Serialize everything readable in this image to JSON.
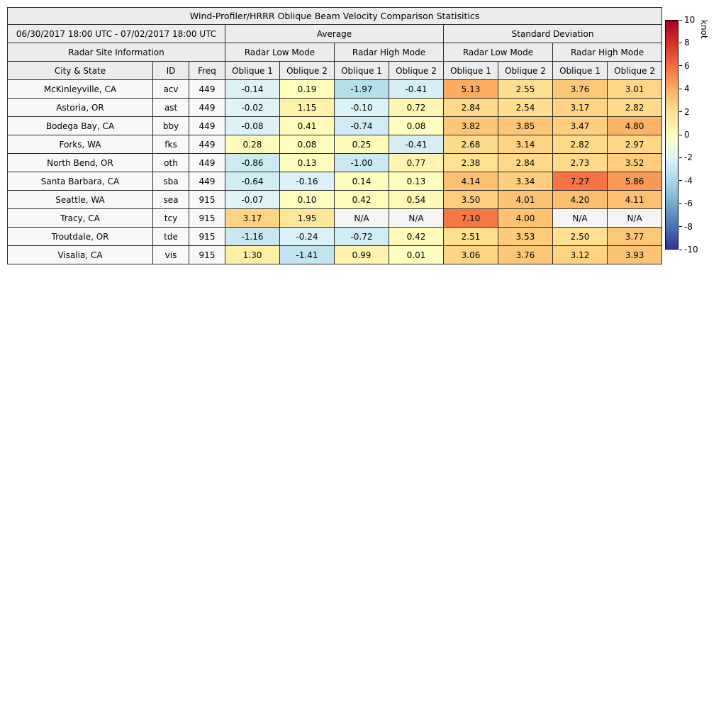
{
  "title": "Wind-Profiler/HRRR Oblique Beam Velocity Comparison Statisitics",
  "header": {
    "date_range": "06/30/2017 18:00 UTC - 07/02/2017 18:00 UTC",
    "avg_label": "Average",
    "std_label": "Standard Deviation",
    "site_info_label": "Radar Site Information",
    "mode_labels": [
      "Radar Low Mode",
      "Radar High Mode",
      "Radar Low Mode",
      "Radar High Mode"
    ],
    "columns": [
      "City & State",
      "ID",
      "Freq",
      "Oblique 1",
      "Oblique 2",
      "Oblique 1",
      "Oblique 2",
      "Oblique 1",
      "Oblique 2",
      "Oblique 1",
      "Oblique 2"
    ]
  },
  "colorbar": {
    "label": "knot",
    "ticks": [
      "10",
      "8",
      "6",
      "4",
      "2",
      "0",
      "-2",
      "-4",
      "-6",
      "-8",
      "-10"
    ],
    "min": -10,
    "max": 10
  },
  "chart_data": {
    "type": "heatmap",
    "title": "Wind-Profiler/HRRR Oblique Beam Velocity Comparison Statisitics",
    "groups": [
      "Average",
      "Standard Deviation"
    ],
    "modes_per_group": [
      "Radar Low Mode",
      "Radar High Mode"
    ],
    "row_header_columns": [
      "City & State",
      "ID",
      "Freq"
    ],
    "value_columns": [
      "Average Low Oblique 1",
      "Average Low Oblique 2",
      "Average High Oblique 1",
      "Average High Oblique 2",
      "StdDev Low Oblique 1",
      "StdDev Low Oblique 2",
      "StdDev High Oblique 1",
      "StdDev High Oblique 2"
    ],
    "value_range": [
      -10,
      10
    ],
    "colorbar_label": "knot",
    "rows": [
      {
        "city": "McKinleyville, CA",
        "id": "acv",
        "freq": "449",
        "values": [
          "-0.14",
          "0.19",
          "-1.97",
          "-0.41",
          "5.13",
          "2.55",
          "3.76",
          "3.01"
        ]
      },
      {
        "city": "Astoria, OR",
        "id": "ast",
        "freq": "449",
        "values": [
          "-0.02",
          "1.15",
          "-0.10",
          "0.72",
          "2.84",
          "2.54",
          "3.17",
          "2.82"
        ]
      },
      {
        "city": "Bodega Bay, CA",
        "id": "bby",
        "freq": "449",
        "values": [
          "-0.08",
          "0.41",
          "-0.74",
          "0.08",
          "3.82",
          "3.85",
          "3.47",
          "4.80"
        ]
      },
      {
        "city": "Forks, WA",
        "id": "fks",
        "freq": "449",
        "values": [
          "0.28",
          "0.08",
          "0.25",
          "-0.41",
          "2.68",
          "3.14",
          "2.82",
          "2.97"
        ]
      },
      {
        "city": "North Bend, OR",
        "id": "oth",
        "freq": "449",
        "values": [
          "-0.86",
          "0.13",
          "-1.00",
          "0.77",
          "2.38",
          "2.84",
          "2.73",
          "3.52"
        ]
      },
      {
        "city": "Santa Barbara, CA",
        "id": "sba",
        "freq": "449",
        "values": [
          "-0.64",
          "-0.16",
          "0.14",
          "0.13",
          "4.14",
          "3.34",
          "7.27",
          "5.86"
        ]
      },
      {
        "city": "Seattle, WA",
        "id": "sea",
        "freq": "915",
        "values": [
          "-0.07",
          "0.10",
          "0.42",
          "0.54",
          "3.50",
          "4.01",
          "4.20",
          "4.11"
        ]
      },
      {
        "city": "Tracy, CA",
        "id": "tcy",
        "freq": "915",
        "values": [
          "3.17",
          "1.95",
          "N/A",
          "N/A",
          "7.10",
          "4.00",
          "N/A",
          "N/A"
        ]
      },
      {
        "city": "Troutdale, OR",
        "id": "tde",
        "freq": "915",
        "values": [
          "-1.16",
          "-0.24",
          "-0.72",
          "0.42",
          "2.51",
          "3.53",
          "2.50",
          "3.77"
        ]
      },
      {
        "city": "Visalia, CA",
        "id": "vis",
        "freq": "915",
        "values": [
          "1.30",
          "-1.41",
          "0.99",
          "0.01",
          "3.06",
          "3.76",
          "3.12",
          "3.93"
        ]
      }
    ]
  }
}
